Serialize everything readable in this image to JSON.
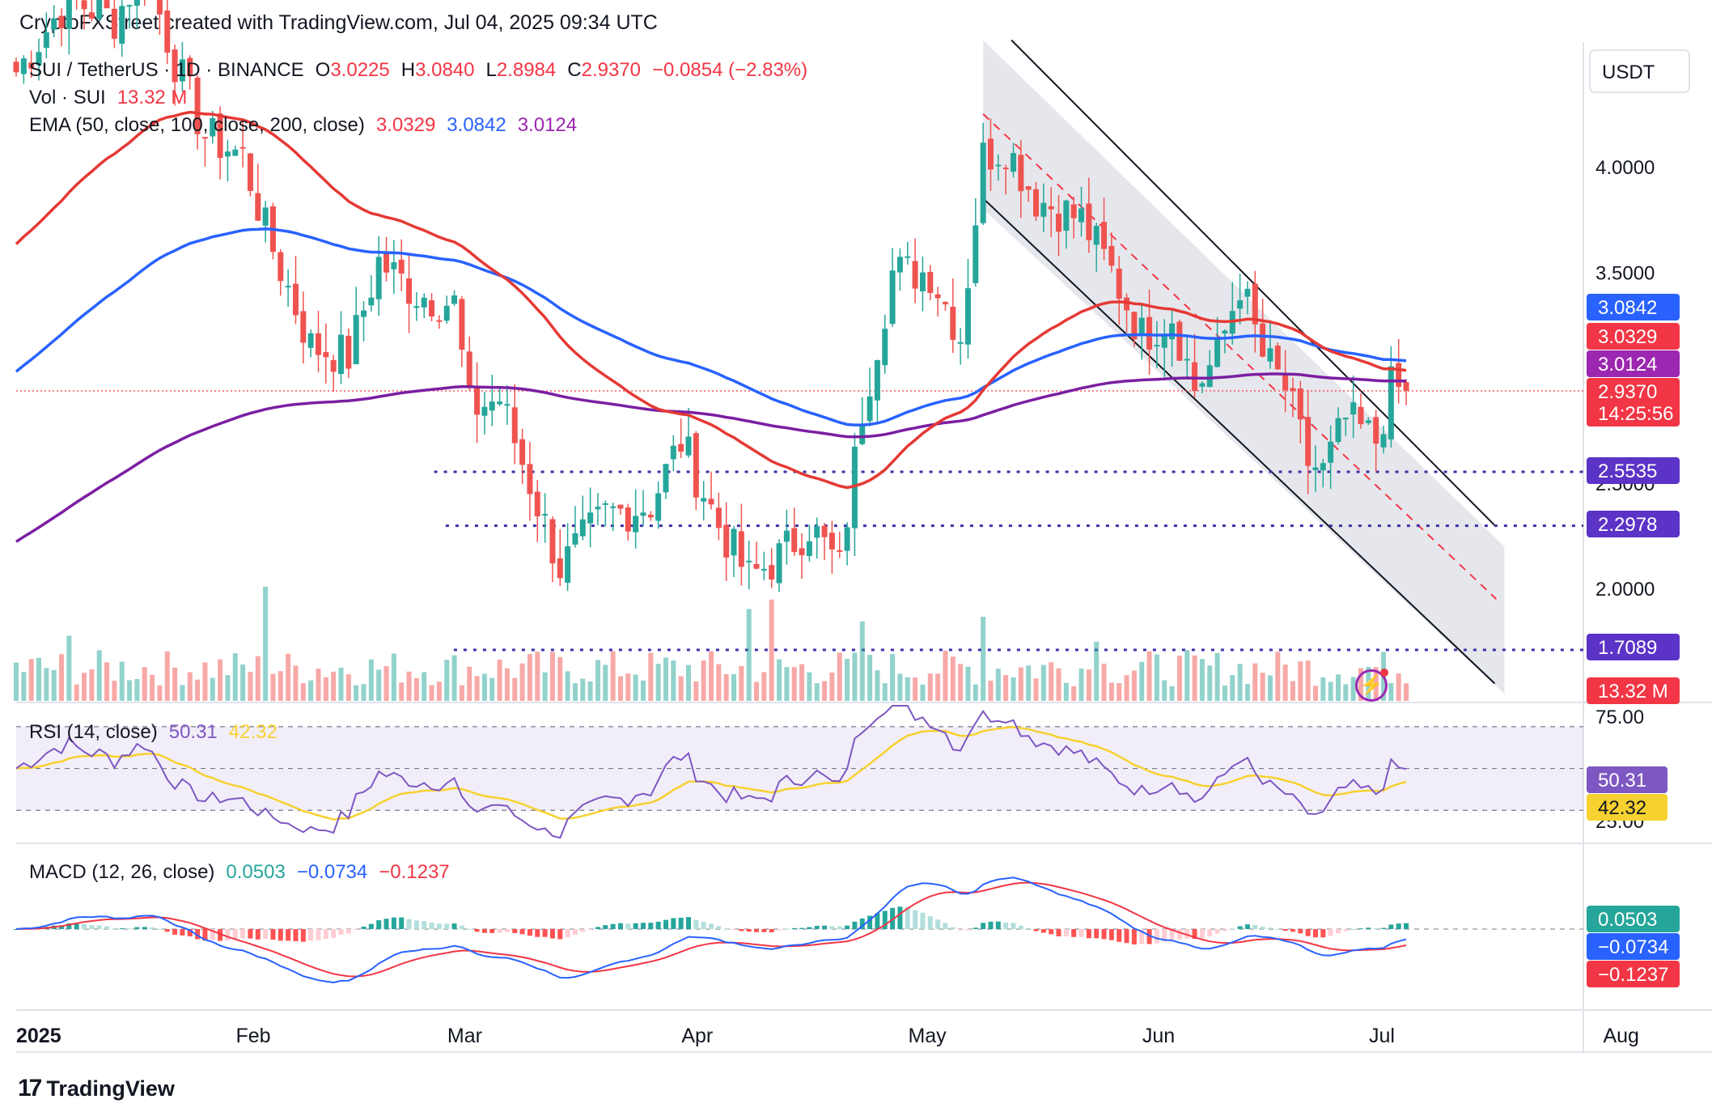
{
  "header": {
    "attribution": "CryptoFXStreet created with TradingView.com, Jul 04, 2025 09:34 UTC"
  },
  "footer": {
    "brand": "TradingView"
  },
  "legend": {
    "symbol": "SUI / TetherUS · 1D · BINANCE",
    "open_label": "O",
    "open": "3.0225",
    "high_label": "H",
    "high": "3.0840",
    "low_label": "L",
    "low": "2.8984",
    "close_label": "C",
    "close": "2.9370",
    "change": "−0.0854 (−2.83%)",
    "vol_label": "Vol · SUI",
    "vol": "13.32 M",
    "ema_label": "EMA (50, close, 100, close, 200, close)",
    "ema50": "3.0329",
    "ema100": "3.0842",
    "ema200": "3.0124",
    "rsi_label": "RSI (14, close)",
    "rsi": "50.31",
    "rsi_ma": "42.32",
    "macd_label": "MACD (12, 26, close)",
    "macd_hist": "0.0503",
    "macd_line": "−0.0734",
    "macd_signal": "−0.1237"
  },
  "price_axis": {
    "currency": "USDT",
    "ticks": [
      "4.0000",
      "3.5000",
      "2.5000",
      "2.0000"
    ],
    "badges": [
      {
        "text": "3.0842",
        "color": "#2962ff"
      },
      {
        "text": "3.0329",
        "color": "#f23645"
      },
      {
        "text": "3.0124",
        "color": "#9c27b0"
      },
      {
        "text": "2.9370",
        "color": "#f23645"
      },
      {
        "text": "14:25:56",
        "color": "#f23645"
      },
      {
        "text": "2.5535",
        "color": "#5b33c6"
      },
      {
        "text": "2.2978",
        "color": "#5b33c6"
      },
      {
        "text": "1.7089",
        "color": "#5b33c6"
      },
      {
        "text": "13.32 M",
        "color": "#f23645"
      }
    ],
    "rsi_ticks": [
      "75.00",
      "25.00"
    ],
    "rsi_badges": [
      {
        "text": "50.31",
        "color": "#7e57c2"
      },
      {
        "text": "42.32",
        "color": "#f7d130"
      }
    ],
    "macd_badges": [
      {
        "text": "0.0503",
        "color": "#26a69a"
      },
      {
        "text": "−0.0734",
        "color": "#2962ff"
      },
      {
        "text": "−0.1237",
        "color": "#f23645"
      }
    ]
  },
  "time_axis": [
    "2025",
    "Feb",
    "Mar",
    "Apr",
    "May",
    "Jun",
    "Jul",
    "Aug"
  ],
  "chart_data": {
    "type": "candlestick",
    "symbol": "SUI / TetherUS",
    "interval": "1D",
    "exchange": "BINANCE",
    "last": {
      "open": 3.0225,
      "high": 3.084,
      "low": 2.8984,
      "close": 2.937,
      "change": -0.0854,
      "change_pct": -2.83
    },
    "close_anchors": [
      [
        "2025-01-01",
        4.45
      ],
      [
        "2025-01-08",
        4.8
      ],
      [
        "2025-01-14",
        4.7
      ],
      [
        "2025-01-18",
        4.95
      ],
      [
        "2025-01-22",
        4.5
      ],
      [
        "2025-01-26",
        4.15
      ],
      [
        "2025-01-31",
        4.05
      ],
      [
        "2025-02-03",
        3.7
      ],
      [
        "2025-02-09",
        3.15
      ],
      [
        "2025-02-14",
        3.1
      ],
      [
        "2025-02-18",
        3.55
      ],
      [
        "2025-02-23",
        3.4
      ],
      [
        "2025-02-28",
        3.35
      ],
      [
        "2025-03-02",
        2.85
      ],
      [
        "2025-03-06",
        2.9
      ],
      [
        "2025-03-10",
        2.5
      ],
      [
        "2025-03-14",
        2.1
      ],
      [
        "2025-03-20",
        2.35
      ],
      [
        "2025-03-26",
        2.4
      ],
      [
        "2025-03-30",
        2.7
      ],
      [
        "2025-04-04",
        2.3
      ],
      [
        "2025-04-08",
        2.05
      ],
      [
        "2025-04-12",
        2.15
      ],
      [
        "2025-04-16",
        2.3
      ],
      [
        "2025-04-20",
        2.1
      ],
      [
        "2025-04-23",
        2.85
      ],
      [
        "2025-04-27",
        3.5
      ],
      [
        "2025-05-02",
        3.5
      ],
      [
        "2025-05-06",
        3.2
      ],
      [
        "2025-05-09",
        4.05
      ],
      [
        "2025-05-12",
        4.1
      ],
      [
        "2025-05-16",
        3.85
      ],
      [
        "2025-05-22",
        3.75
      ],
      [
        "2025-05-26",
        3.5
      ],
      [
        "2025-05-30",
        3.2
      ],
      [
        "2025-06-03",
        3.3
      ],
      [
        "2025-06-06",
        2.95
      ],
      [
        "2025-06-09",
        3.1
      ],
      [
        "2025-06-12",
        3.45
      ],
      [
        "2025-06-15",
        3.1
      ],
      [
        "2025-06-18",
        2.95
      ],
      [
        "2025-06-21",
        2.6
      ],
      [
        "2025-06-23",
        2.55
      ],
      [
        "2025-06-26",
        2.8
      ],
      [
        "2025-06-30",
        2.7
      ],
      [
        "2025-07-02",
        2.95
      ],
      [
        "2025-07-04",
        2.937
      ]
    ],
    "ema": {
      "ema50": 3.0329,
      "ema100": 3.0842,
      "ema200": 3.0124
    },
    "horizontal_levels": [
      2.5535,
      2.2978,
      1.7089
    ],
    "channel": {
      "type": "descending",
      "from_date": "2025-05-09",
      "to_date": "2025-07-17"
    },
    "volume_last": "13.32 M",
    "rsi": {
      "period": 14,
      "value": 50.31,
      "ma": 42.32,
      "bands": [
        75,
        50,
        25
      ]
    },
    "macd": {
      "fast": 12,
      "slow": 26,
      "histogram": 0.0503,
      "macd": -0.0734,
      "signal": -0.1237
    },
    "x_range": [
      "2025-01-01",
      "2025-08-01"
    ],
    "y_range": [
      1.6,
      4.6
    ]
  }
}
